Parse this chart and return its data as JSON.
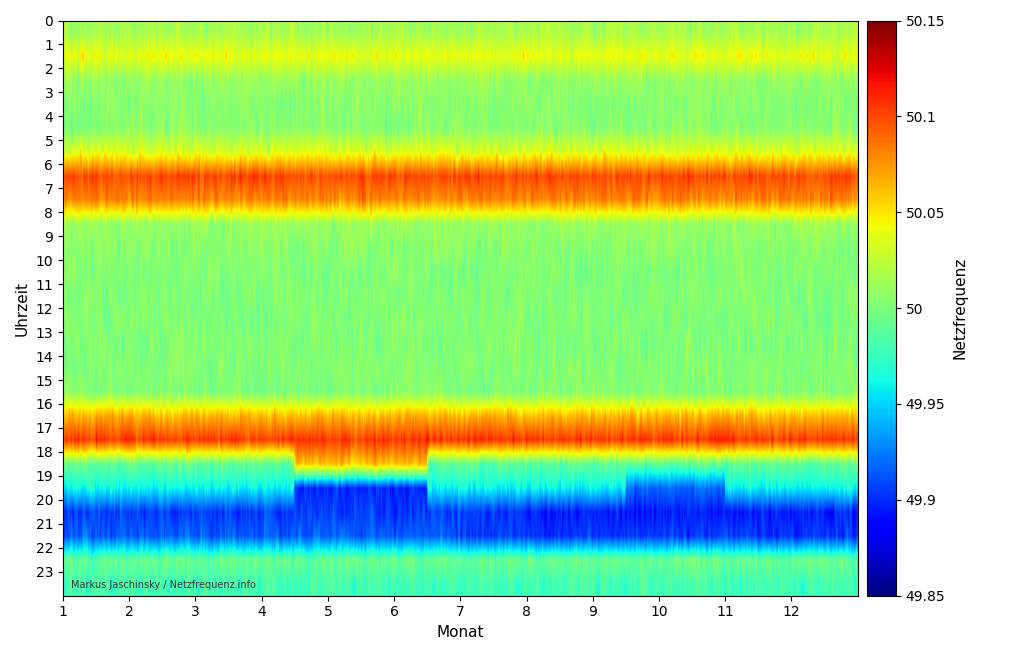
{
  "xlabel": "Monat",
  "ylabel": "Uhrzeit",
  "colorbar_label": "Netzfrequenz",
  "vmin": 49.85,
  "vmax": 50.15,
  "colorbar_ticks": [
    49.85,
    49.9,
    49.95,
    50.0,
    50.05,
    50.1,
    50.15
  ],
  "colorbar_ticklabels": [
    "49.85",
    "49.9",
    "49.95",
    "50",
    "50.05",
    "50.1",
    "50.15"
  ],
  "x_ticks": [
    1,
    2,
    3,
    4,
    5,
    6,
    7,
    8,
    9,
    10,
    11,
    12
  ],
  "y_ticks": [
    0,
    1,
    2,
    3,
    4,
    5,
    6,
    7,
    8,
    9,
    10,
    11,
    12,
    13,
    14,
    15,
    16,
    17,
    18,
    19,
    20,
    21,
    22,
    23
  ],
  "annotation": "Markus Jaschinsky / Netzfrequenz.info",
  "annotation_color": "#333333",
  "background_color": "#ffffff",
  "n_hours": 24,
  "n_cols": 1460,
  "seed": 42,
  "base_freq": 50.0,
  "hour_offsets": [
    0.015,
    0.025,
    0.01,
    0.005,
    0.005,
    0.02,
    0.06,
    0.05,
    0.005,
    0.005,
    0.002,
    0.002,
    0.002,
    0.002,
    0.003,
    0.003,
    0.04,
    0.06,
    -0.01,
    -0.04,
    -0.05,
    -0.05,
    0.008,
    0.0
  ],
  "hour_noise": [
    0.012,
    0.012,
    0.012,
    0.012,
    0.012,
    0.012,
    0.012,
    0.012,
    0.012,
    0.012,
    0.012,
    0.012,
    0.012,
    0.012,
    0.012,
    0.012,
    0.012,
    0.012,
    0.012,
    0.012,
    0.012,
    0.012,
    0.012,
    0.012
  ],
  "figsize": [
    10.24,
    6.55
  ],
  "dpi": 100
}
